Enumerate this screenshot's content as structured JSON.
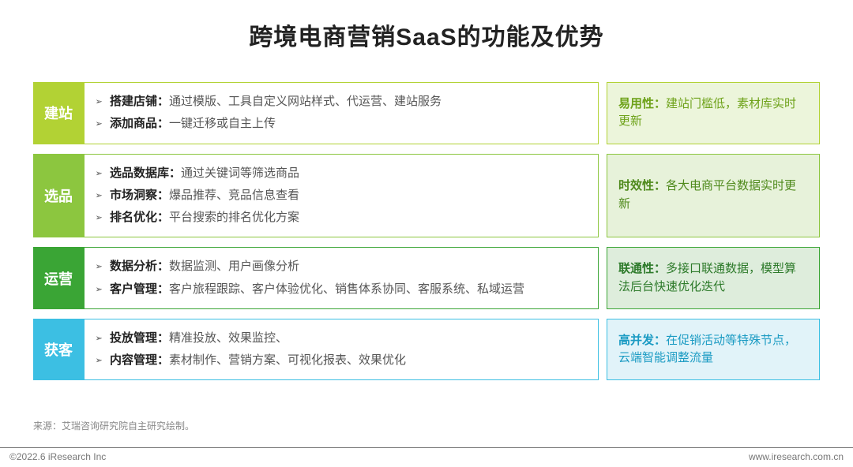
{
  "title": "跨境电商营销SaaS的功能及优势",
  "rows": [
    {
      "tag": "建站",
      "tag_bg": "#b2d234",
      "mid_border": "#b2d234",
      "bullets": [
        {
          "label": "搭建店铺：",
          "desc": "通过模版、工具自定义网站样式、代运营、建站服务"
        },
        {
          "label": "添加商品：",
          "desc": "一键迁移或自主上传"
        }
      ],
      "right_label": "易用性：",
      "right_text": "建站门槛低，素材库实时更新",
      "right_bg": "#ecf5db",
      "right_border": "#b2d234",
      "right_color": "#6ea21a"
    },
    {
      "tag": "选品",
      "tag_bg": "#8cc63f",
      "mid_border": "#8cc63f",
      "bullets": [
        {
          "label": "选品数据库：",
          "desc": "通过关键词等筛选商品"
        },
        {
          "label": "市场洞察：",
          "desc": "爆品推荐、竞品信息查看"
        },
        {
          "label": "排名优化：",
          "desc": "平台搜索的排名优化方案"
        }
      ],
      "right_label": "时效性：",
      "right_text": "各大电商平台数据实时更新",
      "right_bg": "#e7f2da",
      "right_border": "#8cc63f",
      "right_color": "#4f8a1c"
    },
    {
      "tag": "运营",
      "tag_bg": "#3aa535",
      "mid_border": "#3aa535",
      "bullets": [
        {
          "label": "数据分析：",
          "desc": "数据监测、用户画像分析"
        },
        {
          "label": "客户管理：",
          "desc": "客户旅程跟踪、客户体验优化、销售体系协同、客服系统、私域运营"
        }
      ],
      "right_label": "联通性：",
      "right_text": "多接口联通数据，模型算法后台快速优化迭代",
      "right_bg": "#deeddc",
      "right_border": "#3aa535",
      "right_color": "#2d7a2a"
    },
    {
      "tag": "获客",
      "tag_bg": "#3cbfe3",
      "mid_border": "#3cbfe3",
      "bullets": [
        {
          "label": "投放管理：",
          "desc": "精准投放、效果监控、"
        },
        {
          "label": "内容管理：",
          "desc": "素材制作、营销方案、可视化报表、效果优化"
        }
      ],
      "right_label": "高并发：",
      "right_text": "在促销活动等特殊节点，云端智能调整流量",
      "right_bg": "#e1f3f9",
      "right_border": "#3cbfe3",
      "right_color": "#1b9bc3"
    }
  ],
  "source": "来源：艾瑞咨询研究院自主研究绘制。",
  "footer_left": "©2022.6 iResearch Inc",
  "footer_right": "www.iresearch.com.cn"
}
